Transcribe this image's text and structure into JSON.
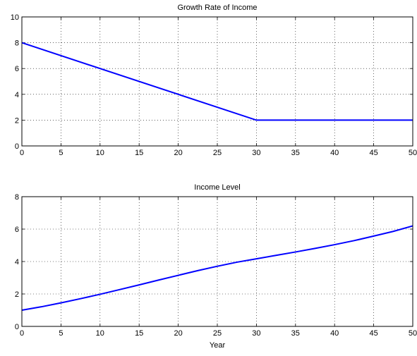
{
  "colors": {
    "line": "#0000ff",
    "axis": "#000000",
    "background": "#ffffff"
  },
  "chart_data": [
    {
      "type": "line",
      "title": "Growth Rate of Income",
      "xlabel": "",
      "ylabel": "",
      "xlim": [
        0,
        50
      ],
      "ylim": [
        0,
        10
      ],
      "xticks": [
        0,
        5,
        10,
        15,
        20,
        25,
        30,
        35,
        40,
        45,
        50
      ],
      "yticks": [
        0,
        2,
        4,
        6,
        8,
        10
      ],
      "grid": true,
      "series": [
        {
          "x": [
            0,
            30,
            50
          ],
          "y": [
            8,
            2,
            2
          ]
        }
      ]
    },
    {
      "type": "line",
      "title": "Income Level",
      "xlabel": "Year",
      "ylabel": "",
      "xlim": [
        0,
        50
      ],
      "ylim": [
        0,
        8
      ],
      "xticks": [
        0,
        5,
        10,
        15,
        20,
        25,
        30,
        35,
        40,
        45,
        50
      ],
      "yticks": [
        0,
        2,
        4,
        6,
        8
      ],
      "grid": true,
      "series": [
        {
          "x": [
            0,
            2.5,
            5,
            7.5,
            10,
            12.5,
            15,
            17.5,
            20,
            22.5,
            25,
            27.5,
            30,
            32.5,
            35,
            37.5,
            40,
            42.5,
            45,
            47.5,
            50
          ],
          "y": [
            1.0,
            1.21,
            1.45,
            1.71,
            1.98,
            2.27,
            2.56,
            2.86,
            3.15,
            3.44,
            3.71,
            3.96,
            4.17,
            4.38,
            4.59,
            4.81,
            5.04,
            5.29,
            5.57,
            5.86,
            6.2
          ]
        }
      ]
    }
  ]
}
